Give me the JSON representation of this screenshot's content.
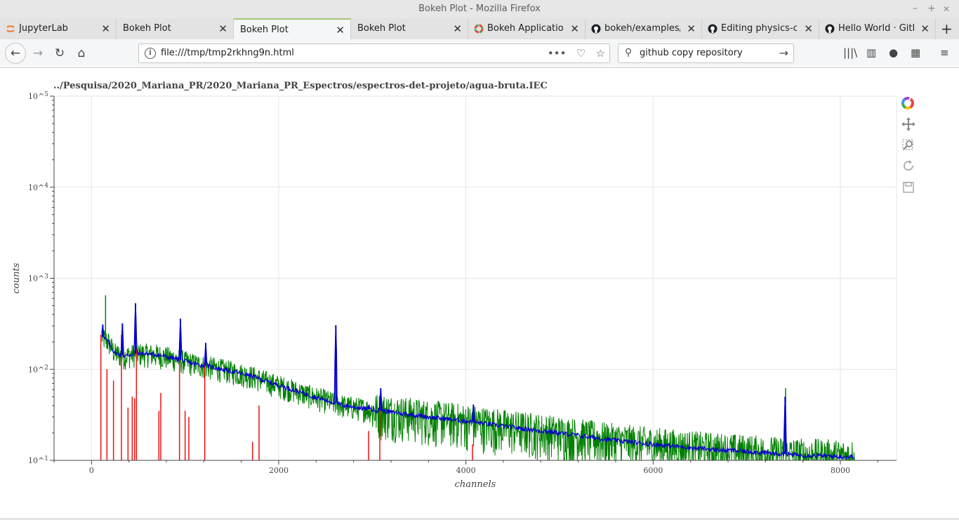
{
  "window": {
    "title": "Bokeh Plot - Mozilla Firefox",
    "min": "–",
    "max": "+",
    "close": "✕"
  },
  "tabs": [
    {
      "label": "JupyterLab",
      "icon": "jupyter-icon",
      "active": false
    },
    {
      "label": "Bokeh Plot",
      "icon": "",
      "active": false
    },
    {
      "label": "Bokeh Plot",
      "icon": "",
      "active": true
    },
    {
      "label": "Bokeh Plot",
      "icon": "",
      "active": false
    },
    {
      "label": "Bokeh Application",
      "icon": "bokeh-icon",
      "active": false
    },
    {
      "label": "bokeh/examples/",
      "icon": "github-icon",
      "active": false
    },
    {
      "label": "Editing physics-co",
      "icon": "github-icon",
      "active": false
    },
    {
      "label": "Hello World · GitH",
      "icon": "github-icon",
      "active": false
    }
  ],
  "nav": {
    "url": "file:///tmp/tmp2rkhng9n.html",
    "search": "github copy repository"
  },
  "chart_data": {
    "type": "line",
    "title": "../Pesquisa/2020_Mariana_PR/2020_Mariana_PR_Espectros/espectros-det-projeto/agua-bruta.IEC",
    "xlabel": "channels",
    "ylabel": "counts",
    "x_ticks": [
      "0",
      "2000",
      "4000",
      "6000",
      "8000"
    ],
    "y_ticks": [
      "10^1",
      "10^2",
      "10^3",
      "10^4",
      "10^5"
    ],
    "xlim": [
      -400,
      8600
    ],
    "ylim": [
      10,
      100000
    ],
    "y_scale": "log",
    "grid": true,
    "legend": "none",
    "series": [
      {
        "role": "raw spectrum",
        "color": "#008000",
        "baseline_points": [
          [
            110,
            230
          ],
          [
            180,
            200
          ],
          [
            250,
            150
          ],
          [
            350,
            140
          ],
          [
            500,
            150
          ],
          [
            700,
            145
          ],
          [
            900,
            130
          ],
          [
            1100,
            115
          ],
          [
            1300,
            105
          ],
          [
            1500,
            95
          ],
          [
            1700,
            85
          ],
          [
            1900,
            72
          ],
          [
            2100,
            62
          ],
          [
            2300,
            53
          ],
          [
            2500,
            46
          ],
          [
            2700,
            40
          ],
          [
            3000,
            36
          ],
          [
            3300,
            33
          ],
          [
            3600,
            30
          ],
          [
            4000,
            27
          ],
          [
            4500,
            23
          ],
          [
            5000,
            20
          ],
          [
            5500,
            17
          ],
          [
            6000,
            15
          ],
          [
            6500,
            13.5
          ],
          [
            7000,
            12.5
          ],
          [
            7500,
            11.5
          ],
          [
            8000,
            11
          ],
          [
            8150,
            11
          ]
        ],
        "noise_fraction": 0.3
      },
      {
        "role": "smoothed spectrum",
        "color": "#0000cc",
        "baseline_points": [
          [
            110,
            230
          ],
          [
            180,
            200
          ],
          [
            250,
            150
          ],
          [
            350,
            140
          ],
          [
            500,
            150
          ],
          [
            700,
            145
          ],
          [
            900,
            130
          ],
          [
            1100,
            115
          ],
          [
            1300,
            105
          ],
          [
            1500,
            95
          ],
          [
            1700,
            85
          ],
          [
            1900,
            72
          ],
          [
            2100,
            62
          ],
          [
            2300,
            53
          ],
          [
            2500,
            46
          ],
          [
            2700,
            40
          ],
          [
            3000,
            36
          ],
          [
            3300,
            33
          ],
          [
            3600,
            30
          ],
          [
            4000,
            27
          ],
          [
            4500,
            23
          ],
          [
            5000,
            20
          ],
          [
            5500,
            17
          ],
          [
            6000,
            15
          ],
          [
            6500,
            13.5
          ],
          [
            7000,
            12.5
          ],
          [
            7500,
            11.5
          ],
          [
            8000,
            11
          ],
          [
            8150,
            11
          ]
        ],
        "noise_fraction": 0.06,
        "peaks": [
          {
            "x": 120,
            "y": 310
          },
          {
            "x": 330,
            "y": 320
          },
          {
            "x": 470,
            "y": 530
          },
          {
            "x": 950,
            "y": 360
          },
          {
            "x": 1220,
            "y": 195
          },
          {
            "x": 1770,
            "y": 80
          },
          {
            "x": 2610,
            "y": 305
          },
          {
            "x": 2960,
            "y": 40
          },
          {
            "x": 3090,
            "y": 62
          },
          {
            "x": 4080,
            "y": 41
          },
          {
            "x": 7410,
            "y": 50
          }
        ]
      },
      {
        "role": "identified peaks",
        "color": "#ee1111",
        "stems": [
          {
            "x": 100,
            "y": 240
          },
          {
            "x": 165,
            "y": 100
          },
          {
            "x": 235,
            "y": 75
          },
          {
            "x": 320,
            "y": 240
          },
          {
            "x": 390,
            "y": 38
          },
          {
            "x": 435,
            "y": 50
          },
          {
            "x": 460,
            "y": 48
          },
          {
            "x": 480,
            "y": 170
          },
          {
            "x": 720,
            "y": 35
          },
          {
            "x": 740,
            "y": 55
          },
          {
            "x": 940,
            "y": 200
          },
          {
            "x": 1000,
            "y": 35
          },
          {
            "x": 1040,
            "y": 30
          },
          {
            "x": 1210,
            "y": 125
          },
          {
            "x": 1720,
            "y": 16
          },
          {
            "x": 1790,
            "y": 40
          },
          {
            "x": 2960,
            "y": 21
          },
          {
            "x": 3080,
            "y": 50
          },
          {
            "x": 4070,
            "y": 15
          }
        ]
      }
    ],
    "extra_peak": {
      "series": "raw spectrum",
      "x": 150,
      "y": 650
    },
    "green_extra": [
      {
        "x": 7415,
        "y": 62
      }
    ]
  },
  "toolbar": {
    "tools": [
      "bokeh-logo-icon",
      "pan-icon",
      "box-zoom-icon",
      "reset-icon",
      "save-icon"
    ]
  }
}
